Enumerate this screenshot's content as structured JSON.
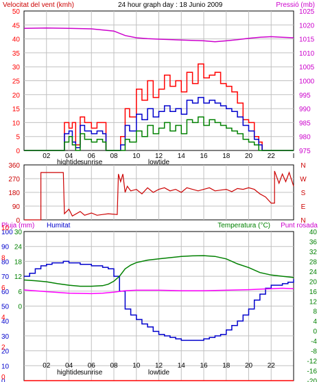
{
  "colors": {
    "wind_avg": "#0000cc",
    "wind_gust": "#ff0000",
    "wind_min": "#008000",
    "pressure": "#cc00cc",
    "direction": "#cc0000",
    "humidity": "#0000cc",
    "temperature": "#008000",
    "dewpoint": "#ff00ff",
    "rain": "#ff0000",
    "panel_bg": "#ffffff",
    "grid": "#c0c0c0",
    "frame": "#000000"
  },
  "chart_data": [
    {
      "type": "line",
      "title": "24 hour graph day : 18 Junio 2009",
      "left_label": "Velocitat del vent (kmh)",
      "right_label": "Pressió (mb)",
      "x_ticks": [
        "02",
        "04",
        "06",
        "08",
        "10",
        "12",
        "14",
        "16",
        "18",
        "20",
        "22",
        "I"
      ],
      "x_annotations": [
        "hightide",
        "sunrise",
        "lowtide"
      ],
      "y_left_ticks": [
        "0",
        "5",
        "10",
        "15",
        "20",
        "25",
        "30",
        "35",
        "40",
        "45",
        "50"
      ],
      "y_right_ticks": [
        "975",
        "980",
        "985",
        "990",
        "995",
        "1000",
        "1005",
        "1010",
        "1015",
        "1020",
        "1025"
      ],
      "ylim_left": [
        0,
        50
      ],
      "ylim_right": [
        975,
        1025
      ],
      "xlim": [
        0,
        24
      ],
      "grid": true,
      "series": [
        {
          "key": "pressure",
          "axis": "right",
          "x": [
            0,
            2,
            4,
            6,
            7,
            8,
            9,
            10,
            11,
            12,
            14,
            16,
            17,
            18,
            19,
            20,
            21,
            22,
            23,
            24
          ],
          "y": [
            1018.8,
            1018.9,
            1018.8,
            1018.6,
            1018.2,
            1017.8,
            1016.2,
            1015.4,
            1015.1,
            1014.9,
            1014.6,
            1014.3,
            1014.0,
            1014.3,
            1014.7,
            1015.2,
            1015.6,
            1015.8,
            1015.6,
            1015.4
          ]
        },
        {
          "key": "wind_gust",
          "axis": "left",
          "x": [
            0,
            3.4,
            3.6,
            4.0,
            4.3,
            4.6,
            5.0,
            5.4,
            6.0,
            6.5,
            7.0,
            7.3,
            7.6,
            8.3,
            8.6,
            9.0,
            9.4,
            10.0,
            10.5,
            11.0,
            11.5,
            12.0,
            12.5,
            13.0,
            13.5,
            14.0,
            14.5,
            15.0,
            15.5,
            16.0,
            16.5,
            17.0,
            17.5,
            18.0,
            18.5,
            19.0,
            19.5,
            20.0,
            20.5,
            20.9,
            21.2,
            24
          ],
          "y": [
            0,
            0,
            10,
            8,
            10,
            2,
            12,
            10,
            8,
            10,
            10,
            0,
            0,
            0,
            5,
            15,
            12,
            22,
            18,
            25,
            19,
            22,
            27,
            23,
            25,
            21,
            28,
            24,
            31,
            26,
            27,
            28,
            24,
            23,
            21,
            17,
            11,
            10,
            5,
            3,
            0,
            0
          ]
        },
        {
          "key": "wind_avg",
          "axis": "left",
          "x": [
            0,
            3.4,
            3.6,
            4.0,
            4.3,
            4.6,
            5.0,
            5.4,
            6.0,
            6.5,
            7.0,
            7.3,
            7.6,
            8.3,
            8.6,
            9.0,
            9.4,
            10.0,
            10.5,
            11.0,
            11.5,
            12.0,
            12.5,
            13.0,
            13.5,
            14.0,
            14.5,
            15.0,
            15.5,
            16.0,
            16.5,
            17.0,
            17.5,
            18.0,
            18.5,
            19.0,
            19.5,
            20.0,
            20.5,
            20.9,
            21.2,
            24
          ],
          "y": [
            0,
            0,
            6,
            7,
            3,
            1,
            9,
            7,
            6,
            7,
            6,
            0,
            0,
            0,
            2,
            9,
            7,
            13,
            11,
            15,
            12,
            14,
            16,
            14,
            15,
            13,
            18,
            17,
            19,
            17,
            18,
            17,
            16,
            15,
            14,
            12,
            9,
            7,
            4,
            2,
            0,
            0
          ]
        },
        {
          "key": "wind_min",
          "axis": "left",
          "x": [
            0,
            3.4,
            3.6,
            4.0,
            4.3,
            4.6,
            5.0,
            5.4,
            6.0,
            6.5,
            7.0,
            7.3,
            7.6,
            8.3,
            8.6,
            9.0,
            9.4,
            10.0,
            10.5,
            11.0,
            11.5,
            12.0,
            12.5,
            13.0,
            13.5,
            14.0,
            14.5,
            15.0,
            15.5,
            16.0,
            16.5,
            17.0,
            17.5,
            18.0,
            18.5,
            19.0,
            19.5,
            20.0,
            20.5,
            20.9,
            21.2,
            24
          ],
          "y": [
            0,
            0,
            3,
            5,
            2,
            0,
            6,
            4,
            3,
            4,
            3,
            0,
            0,
            0,
            0,
            4,
            3,
            7,
            5,
            9,
            6,
            8,
            10,
            7,
            9,
            6,
            11,
            10,
            12,
            9,
            11,
            10,
            9,
            8,
            7,
            6,
            4,
            3,
            2,
            0,
            0,
            0
          ]
        }
      ]
    },
    {
      "type": "line",
      "title": "",
      "y_left_ticks": [
        "360",
        "270",
        "180",
        "90",
        "0"
      ],
      "y_right_ticks": [
        "N",
        "W",
        "S",
        "E",
        "N"
      ],
      "ylim": [
        0,
        360
      ],
      "xlim": [
        0,
        24
      ],
      "grid": true,
      "series": [
        {
          "key": "direction",
          "x": [
            0,
            1.5,
            1.5,
            3.5,
            3.6,
            4.0,
            4.3,
            5.0,
            5.4,
            6.0,
            6.5,
            7.0,
            7.5,
            8.3,
            8.4,
            8.6,
            8.8,
            9.0,
            9.2,
            9.5,
            10.0,
            10.5,
            11.0,
            11.5,
            12.0,
            12.5,
            13.0,
            13.5,
            14.0,
            14.5,
            15.0,
            15.5,
            16.0,
            16.5,
            17.0,
            17.5,
            18.0,
            18.5,
            19.0,
            19.5,
            20.0,
            20.5,
            21.0,
            21.5,
            22.0,
            22.3,
            22.3,
            22.7,
            23.0,
            23.3,
            23.6,
            24
          ],
          "y": [
            0,
            0,
            310,
            310,
            40,
            70,
            25,
            55,
            30,
            45,
            30,
            35,
            40,
            35,
            300,
            250,
            300,
            180,
            220,
            190,
            200,
            170,
            210,
            180,
            200,
            210,
            190,
            200,
            180,
            210,
            200,
            190,
            200,
            210,
            190,
            195,
            200,
            185,
            205,
            200,
            210,
            200,
            170,
            150,
            110,
            110,
            320,
            240,
            300,
            250,
            310,
            220
          ]
        }
      ]
    },
    {
      "type": "line",
      "title": "",
      "labels": [
        "Pluja (mm)",
        "Humitat",
        "Temperatura (°C)",
        "Punt rosada"
      ],
      "x_ticks": [
        "02",
        "04",
        "06",
        "08",
        "10",
        "12",
        "14",
        "16",
        "18",
        "20",
        "22",
        "I"
      ],
      "x_annotations": [
        "hightide",
        "sunrise",
        "lowtide"
      ],
      "y_rain_ticks": [
        "0",
        "2",
        "4",
        "6",
        "8",
        "10"
      ],
      "y_humidity_ticks": [
        "0",
        "10",
        "20",
        "30",
        "40",
        "50",
        "60",
        "70",
        "80",
        "90",
        "100"
      ],
      "y_temp_left_ticks": [
        "0",
        "6",
        "12",
        "18",
        "24",
        "30"
      ],
      "y_temp_right_ticks": [
        "-20",
        "-16",
        "-12",
        "-8",
        "-4",
        "0",
        "4",
        "8",
        "12",
        "16",
        "20",
        "24",
        "28",
        "32",
        "36",
        "40"
      ],
      "ylim_humidity": [
        0,
        100
      ],
      "ylim_temp_right": [
        -20,
        40
      ],
      "ylim_rain": [
        0,
        10
      ],
      "xlim": [
        0,
        24
      ],
      "grid": true,
      "series": [
        {
          "key": "humidity",
          "axis": "humidity",
          "x": [
            0,
            0.5,
            1,
            1.5,
            2,
            2.5,
            3,
            3.5,
            4,
            5,
            6,
            7,
            7.5,
            8,
            8.5,
            9,
            9.5,
            10,
            10.5,
            11,
            11.5,
            12,
            12.5,
            13,
            13.5,
            14,
            14.5,
            15,
            15.5,
            16,
            16.5,
            17,
            17.5,
            18,
            18.5,
            19,
            19.5,
            20,
            20.5,
            21,
            21.5,
            22,
            22.5,
            23,
            23.5,
            24
          ],
          "y": [
            70,
            72,
            75,
            77,
            78,
            79,
            79,
            80,
            79,
            78,
            77,
            76,
            75,
            70,
            60,
            48,
            44,
            41,
            38,
            36,
            33,
            31,
            30,
            29,
            28,
            27,
            27,
            27,
            27,
            28,
            29,
            30,
            31,
            34,
            37,
            40,
            44,
            48,
            54,
            58,
            62,
            64,
            64,
            65,
            66,
            68
          ]
        },
        {
          "key": "temperature",
          "axis": "temp",
          "x": [
            0,
            1,
            2,
            3,
            4,
            5,
            6,
            7,
            7.5,
            8,
            8.5,
            9,
            9.5,
            10,
            11,
            12,
            13,
            14,
            15,
            16,
            17,
            18,
            19,
            20,
            21,
            22,
            23,
            24
          ],
          "y": [
            20.5,
            20.2,
            19.8,
            19.0,
            18.4,
            18.0,
            18.0,
            18.2,
            18.8,
            20.0,
            22.0,
            25.0,
            26.5,
            27.5,
            28.5,
            29.0,
            29.5,
            30.0,
            30.2,
            30.3,
            30.0,
            29.0,
            27.0,
            25.5,
            23.5,
            22.5,
            22.0,
            21.5
          ]
        },
        {
          "key": "dewpoint",
          "axis": "temp",
          "x": [
            0,
            2,
            4,
            6,
            7,
            8,
            9,
            10,
            12,
            14,
            16,
            18,
            20,
            21,
            22,
            23,
            24
          ],
          "y": [
            16.5,
            15.8,
            15.2,
            15.0,
            15.2,
            15.6,
            16.2,
            16.4,
            16.4,
            16.2,
            16.2,
            16.4,
            16.6,
            16.8,
            17.0,
            17.2,
            17.0
          ]
        },
        {
          "key": "rain",
          "axis": "rain",
          "x": [
            0,
            24
          ],
          "y": [
            0,
            0
          ]
        }
      ]
    }
  ]
}
